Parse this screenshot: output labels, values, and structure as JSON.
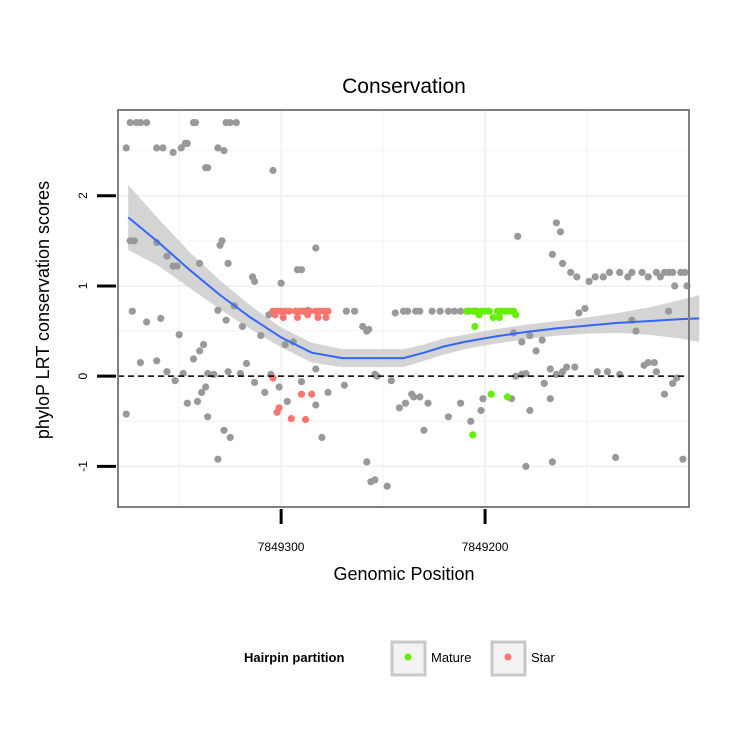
{
  "chart_data": {
    "type": "scatter",
    "title": "Conservation",
    "xlabel": "Genomic Position",
    "ylabel": "phyloP LRT conservation scores",
    "x_reversed": true,
    "xlim": [
      7849380,
      7849100
    ],
    "ylim": [
      -1.45,
      2.95
    ],
    "x_ticks": [
      7849300,
      7849200
    ],
    "x_tick_labels": [
      "7849300",
      "7849200"
    ],
    "y_ticks": [
      -1,
      0,
      1,
      2
    ],
    "y_tick_labels": [
      "-1",
      "0",
      "1",
      "2"
    ],
    "grid": true,
    "reference_line": {
      "y": 0,
      "style": "dashed"
    },
    "legend": {
      "title": "Hairpin partition",
      "placement": "bottom",
      "entries": [
        {
          "label": "Mature",
          "color": "#66ee00"
        },
        {
          "label": "Star",
          "color": "#f8766d"
        }
      ]
    },
    "colors": {
      "other": "#999999",
      "Mature": "#66ee00",
      "Star": "#f8766d",
      "smooth": "#3366ff",
      "band": "#cccccc"
    },
    "series": [
      {
        "name": "",
        "color": "#999999",
        "points": [
          [
            7849376,
            2.53
          ],
          [
            7849374,
            2.81
          ],
          [
            7849371,
            2.81
          ],
          [
            7849369,
            2.81
          ],
          [
            7849366,
            2.81
          ],
          [
            7849361,
            2.53
          ],
          [
            7849358,
            2.53
          ],
          [
            7849353,
            2.48
          ],
          [
            7849349,
            2.53
          ],
          [
            7849347,
            2.58
          ],
          [
            7849346,
            2.58
          ],
          [
            7849343,
            2.81
          ],
          [
            7849342,
            2.81
          ],
          [
            7849337,
            2.31
          ],
          [
            7849336,
            2.31
          ],
          [
            7849331,
            2.53
          ],
          [
            7849327,
            2.81
          ],
          [
            7849325,
            2.81
          ],
          [
            7849322,
            2.81
          ],
          [
            7849328,
            2.5
          ],
          [
            7849304,
            2.28
          ],
          [
            7849374,
            1.5
          ],
          [
            7849372,
            1.5
          ],
          [
            7849361,
            1.48
          ],
          [
            7849356,
            1.33
          ],
          [
            7849353,
            1.22
          ],
          [
            7849351,
            1.22
          ],
          [
            7849340,
            1.25
          ],
          [
            7849330,
            1.45
          ],
          [
            7849329,
            1.5
          ],
          [
            7849326,
            1.25
          ],
          [
            7849314,
            1.1
          ],
          [
            7849313,
            1.05
          ],
          [
            7849300,
            1.03
          ],
          [
            7849292,
            1.18
          ],
          [
            7849290,
            1.18
          ],
          [
            7849283,
            1.42
          ],
          [
            7849373,
            0.72
          ],
          [
            7849366,
            0.6
          ],
          [
            7849359,
            0.64
          ],
          [
            7849369,
            0.15
          ],
          [
            7849361,
            0.17
          ],
          [
            7849356,
            0.05
          ],
          [
            7849350,
            0.46
          ],
          [
            7849343,
            0.19
          ],
          [
            7849340,
            0.28
          ],
          [
            7849338,
            0.35
          ],
          [
            7849331,
            0.73
          ],
          [
            7849327,
            0.62
          ],
          [
            7849323,
            0.78
          ],
          [
            7849319,
            0.55
          ],
          [
            7849310,
            0.45
          ],
          [
            7849306,
            0.68
          ],
          [
            7849298,
            0.35
          ],
          [
            7849294,
            0.38
          ],
          [
            7849290,
            0.72
          ],
          [
            7849287,
            0.73
          ],
          [
            7849283,
            0.08
          ],
          [
            7849376,
            -0.42
          ],
          [
            7849352,
            -0.05
          ],
          [
            7849348,
            0.03
          ],
          [
            7849341,
            -0.28
          ],
          [
            7849336,
            0.03
          ],
          [
            7849333,
            0.02
          ],
          [
            7849326,
            0.05
          ],
          [
            7849320,
            0.03
          ],
          [
            7849317,
            0.14
          ],
          [
            7849313,
            -0.07
          ],
          [
            7849308,
            -0.18
          ],
          [
            7849305,
            0.02
          ],
          [
            7849301,
            -0.12
          ],
          [
            7849297,
            -0.28
          ],
          [
            7849290,
            -0.06
          ],
          [
            7849283,
            -0.32
          ],
          [
            7849280,
            -0.68
          ],
          [
            7849277,
            -0.18
          ],
          [
            7849269,
            -0.1
          ],
          [
            7849339,
            -0.18
          ],
          [
            7849346,
            -0.3
          ],
          [
            7849337,
            -0.12
          ],
          [
            7849336,
            -0.45
          ],
          [
            7849328,
            -0.6
          ],
          [
            7849325,
            -0.68
          ],
          [
            7849331,
            -0.92
          ],
          [
            7849260,
            0.55
          ],
          [
            7849258,
            0.5
          ],
          [
            7849257,
            0.52
          ],
          [
            7849254,
            0.02
          ],
          [
            7849253,
            0.0
          ],
          [
            7849246,
            -0.05
          ],
          [
            7849242,
            -0.35
          ],
          [
            7849239,
            -0.3
          ],
          [
            7849258,
            -0.95
          ],
          [
            7849256,
            -1.17
          ],
          [
            7849254,
            -1.15
          ],
          [
            7849248,
            -1.22
          ],
          [
            7849236,
            -0.2
          ],
          [
            7849235,
            -0.23
          ],
          [
            7849232,
            -0.23
          ],
          [
            7849230,
            -0.6
          ],
          [
            7849228,
            -0.3
          ],
          [
            7849218,
            -0.45
          ],
          [
            7849212,
            -0.3
          ],
          [
            7849207,
            -0.5
          ],
          [
            7849201,
            -0.25
          ],
          [
            7849202,
            -0.38
          ],
          [
            7849268,
            0.72
          ],
          [
            7849264,
            0.72
          ],
          [
            7849244,
            0.7
          ],
          [
            7849240,
            0.72
          ],
          [
            7849238,
            0.72
          ],
          [
            7849234,
            0.72
          ],
          [
            7849232,
            0.72
          ],
          [
            7849226,
            0.72
          ],
          [
            7849222,
            0.72
          ],
          [
            7849218,
            0.72
          ],
          [
            7849215,
            0.72
          ],
          [
            7849212,
            0.72
          ],
          [
            7849208,
            0.72
          ],
          [
            7849205,
            0.72
          ],
          [
            7849184,
            1.55
          ],
          [
            7849165,
            1.7
          ],
          [
            7849163,
            1.6
          ],
          [
            7849167,
            1.35
          ],
          [
            7849162,
            1.25
          ],
          [
            7849158,
            1.15
          ],
          [
            7849155,
            1.1
          ],
          [
            7849149,
            1.05
          ],
          [
            7849146,
            1.1
          ],
          [
            7849142,
            1.1
          ],
          [
            7849139,
            1.15
          ],
          [
            7849134,
            1.15
          ],
          [
            7849130,
            1.1
          ],
          [
            7849128,
            1.15
          ],
          [
            7849123,
            1.15
          ],
          [
            7849120,
            1.1
          ],
          [
            7849116,
            1.15
          ],
          [
            7849112,
            1.15
          ],
          [
            7849110,
            1.15
          ],
          [
            7849107,
            1.0
          ],
          [
            7849104,
            1.15
          ],
          [
            7849108,
            1.15
          ],
          [
            7849114,
            1.1
          ],
          [
            7849110,
            0.72
          ],
          [
            7849102,
            1.15
          ],
          [
            7849101,
            1.0
          ],
          [
            7849186,
            0.48
          ],
          [
            7849182,
            0.38
          ],
          [
            7849178,
            0.45
          ],
          [
            7849175,
            0.28
          ],
          [
            7849172,
            0.4
          ],
          [
            7849168,
            0.08
          ],
          [
            7849162,
            0.05
          ],
          [
            7849160,
            0.1
          ],
          [
            7849156,
            0.1
          ],
          [
            7849154,
            0.7
          ],
          [
            7849151,
            0.75
          ],
          [
            7849145,
            0.05
          ],
          [
            7849140,
            0.05
          ],
          [
            7849134,
            0.02
          ],
          [
            7849128,
            0.62
          ],
          [
            7849126,
            0.5
          ],
          [
            7849122,
            0.12
          ],
          [
            7849120,
            0.15
          ],
          [
            7849117,
            0.15
          ],
          [
            7849116,
            0.05
          ],
          [
            7849187,
            -0.25
          ],
          [
            7849185,
            0.0
          ],
          [
            7849182,
            0.02
          ],
          [
            7849180,
            0.03
          ],
          [
            7849178,
            -0.38
          ],
          [
            7849171,
            -0.08
          ],
          [
            7849168,
            -0.25
          ],
          [
            7849165,
            0.02
          ],
          [
            7849180,
            -1.0
          ],
          [
            7849167,
            -0.95
          ],
          [
            7849136,
            -0.9
          ],
          [
            7849112,
            -0.2
          ],
          [
            7849108,
            -0.08
          ],
          [
            7849106,
            -0.02
          ],
          [
            7849103,
            -0.92
          ]
        ]
      },
      {
        "name": "Mature",
        "color": "#66ee00",
        "points": [
          [
            7849209,
            0.72
          ],
          [
            7849206,
            0.72
          ],
          [
            7849204,
            0.72
          ],
          [
            7849202,
            0.72
          ],
          [
            7849200,
            0.72
          ],
          [
            7849198,
            0.72
          ],
          [
            7849196,
            0.65
          ],
          [
            7849194,
            0.72
          ],
          [
            7849192,
            0.72
          ],
          [
            7849190,
            0.72
          ],
          [
            7849188,
            0.72
          ],
          [
            7849186,
            0.72
          ],
          [
            7849205,
            0.55
          ],
          [
            7849203,
            0.68
          ],
          [
            7849193,
            0.65
          ],
          [
            7849185,
            0.68
          ],
          [
            7849206,
            -0.65
          ],
          [
            7849197,
            -0.2
          ],
          [
            7849189,
            -0.23
          ]
        ]
      },
      {
        "name": "Star",
        "color": "#f8766d",
        "points": [
          [
            7849304,
            0.72
          ],
          [
            7849302,
            0.72
          ],
          [
            7849300,
            0.72
          ],
          [
            7849298,
            0.72
          ],
          [
            7849296,
            0.72
          ],
          [
            7849293,
            0.72
          ],
          [
            7849291,
            0.72
          ],
          [
            7849289,
            0.72
          ],
          [
            7849286,
            0.72
          ],
          [
            7849283,
            0.72
          ],
          [
            7849281,
            0.72
          ],
          [
            7849279,
            0.72
          ],
          [
            7849277,
            0.72
          ],
          [
            7849303,
            0.68
          ],
          [
            7849299,
            0.65
          ],
          [
            7849292,
            0.65
          ],
          [
            7849287,
            0.68
          ],
          [
            7849282,
            0.65
          ],
          [
            7849278,
            0.65
          ],
          [
            7849304,
            -0.02
          ],
          [
            7849301,
            -0.35
          ],
          [
            7849302,
            -0.4
          ],
          [
            7849295,
            -0.47
          ],
          [
            7849290,
            -0.2
          ],
          [
            7849285,
            -0.2
          ],
          [
            7849288,
            -0.48
          ]
        ]
      }
    ],
    "smooth": [
      [
        7849375,
        1.76
      ],
      [
        7849360,
        1.48
      ],
      [
        7849345,
        1.18
      ],
      [
        7849330,
        0.9
      ],
      [
        7849315,
        0.65
      ],
      [
        7849300,
        0.43
      ],
      [
        7849285,
        0.26
      ],
      [
        7849270,
        0.2
      ],
      [
        7849255,
        0.2
      ],
      [
        7849240,
        0.2
      ],
      [
        7849230,
        0.26
      ],
      [
        7849220,
        0.33
      ],
      [
        7849210,
        0.38
      ],
      [
        7849195,
        0.44
      ],
      [
        7849180,
        0.49
      ],
      [
        7849165,
        0.53
      ],
      [
        7849150,
        0.56
      ],
      [
        7849135,
        0.59
      ],
      [
        7849120,
        0.61
      ],
      [
        7849105,
        0.63
      ],
      [
        7849095,
        0.64
      ]
    ],
    "smooth_band": [
      [
        7849375,
        1.4,
        2.12
      ],
      [
        7849360,
        1.22,
        1.74
      ],
      [
        7849345,
        0.98,
        1.38
      ],
      [
        7849330,
        0.74,
        1.06
      ],
      [
        7849315,
        0.52,
        0.78
      ],
      [
        7849300,
        0.32,
        0.54
      ],
      [
        7849285,
        0.15,
        0.37
      ],
      [
        7849270,
        0.1,
        0.3
      ],
      [
        7849255,
        0.1,
        0.3
      ],
      [
        7849240,
        0.1,
        0.3
      ],
      [
        7849230,
        0.17,
        0.35
      ],
      [
        7849220,
        0.24,
        0.42
      ],
      [
        7849210,
        0.3,
        0.46
      ],
      [
        7849195,
        0.36,
        0.52
      ],
      [
        7849180,
        0.41,
        0.57
      ],
      [
        7849165,
        0.45,
        0.61
      ],
      [
        7849150,
        0.47,
        0.65
      ],
      [
        7849135,
        0.48,
        0.7
      ],
      [
        7849120,
        0.46,
        0.76
      ],
      [
        7849105,
        0.42,
        0.84
      ],
      [
        7849095,
        0.38,
        0.9
      ]
    ]
  }
}
